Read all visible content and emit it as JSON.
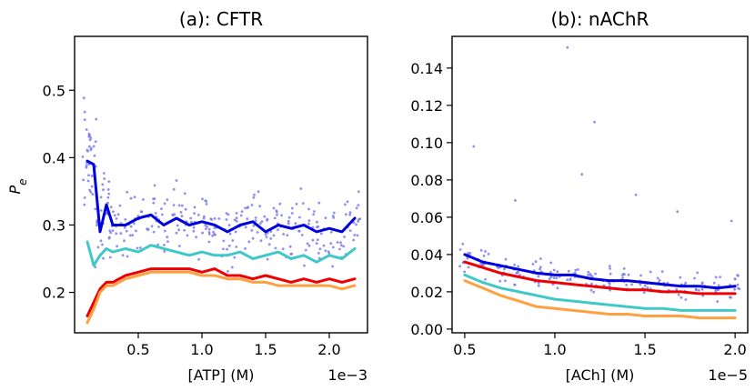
{
  "chart_data": [
    {
      "type": "line",
      "title": "(a): CFTR",
      "xlabel": "[ATP] (M)",
      "ylabel": "P_e",
      "x_offset_label": "1e−3",
      "xlim": [
        0.0,
        2.3
      ],
      "ylim": [
        0.14,
        0.58
      ],
      "xticks": [
        0.5,
        1.0,
        1.5,
        2.0
      ],
      "xtick_labels": [
        "0.5",
        "1.0",
        "1.5",
        "2.0"
      ],
      "yticks": [
        0.2,
        0.3,
        0.4,
        0.5
      ],
      "ytick_labels": [
        "0.2",
        "0.3",
        "0.4",
        "0.5"
      ],
      "grid": false,
      "x": [
        0.1,
        0.15,
        0.2,
        0.25,
        0.3,
        0.4,
        0.5,
        0.6,
        0.7,
        0.8,
        0.9,
        1.0,
        1.1,
        1.2,
        1.3,
        1.4,
        1.5,
        1.6,
        1.7,
        1.8,
        1.9,
        2.0,
        2.1,
        2.2
      ],
      "series": [
        {
          "color": "#0000dd",
          "values": [
            0.395,
            0.39,
            0.29,
            0.33,
            0.3,
            0.3,
            0.31,
            0.315,
            0.3,
            0.31,
            0.3,
            0.305,
            0.3,
            0.29,
            0.3,
            0.305,
            0.29,
            0.3,
            0.295,
            0.3,
            0.29,
            0.295,
            0.29,
            0.31
          ]
        },
        {
          "color": "#40c8c8",
          "values": [
            0.275,
            0.24,
            0.255,
            0.265,
            0.26,
            0.265,
            0.26,
            0.27,
            0.265,
            0.26,
            0.255,
            0.26,
            0.255,
            0.255,
            0.26,
            0.25,
            0.255,
            0.26,
            0.25,
            0.255,
            0.245,
            0.255,
            0.25,
            0.265
          ]
        },
        {
          "color": "#ee0000",
          "values": [
            0.165,
            0.185,
            0.205,
            0.215,
            0.215,
            0.225,
            0.23,
            0.235,
            0.235,
            0.235,
            0.235,
            0.23,
            0.235,
            0.225,
            0.225,
            0.22,
            0.225,
            0.22,
            0.215,
            0.22,
            0.215,
            0.22,
            0.215,
            0.22
          ]
        },
        {
          "color": "#ffa040",
          "values": [
            0.155,
            0.175,
            0.2,
            0.21,
            0.21,
            0.22,
            0.225,
            0.23,
            0.23,
            0.23,
            0.23,
            0.225,
            0.225,
            0.22,
            0.22,
            0.215,
            0.215,
            0.21,
            0.21,
            0.21,
            0.21,
            0.21,
            0.205,
            0.21
          ]
        }
      ],
      "scatter": {
        "color": "#7b7bee",
        "x": [
          0.1,
          0.15,
          0.2,
          0.25,
          0.3,
          0.4,
          0.5,
          0.6,
          0.7,
          0.8,
          0.9,
          1.0,
          1.1,
          1.2,
          1.3,
          1.4,
          1.5,
          1.6,
          1.7,
          1.8,
          1.9,
          2.0,
          2.1,
          2.2
        ],
        "center": [
          0.395,
          0.39,
          0.29,
          0.33,
          0.3,
          0.3,
          0.31,
          0.315,
          0.3,
          0.31,
          0.3,
          0.305,
          0.3,
          0.29,
          0.3,
          0.305,
          0.29,
          0.3,
          0.295,
          0.3,
          0.29,
          0.295,
          0.29,
          0.31
        ],
        "spread": [
          0.14,
          0.09,
          0.07,
          0.07,
          0.07,
          0.07,
          0.07,
          0.07,
          0.07,
          0.07,
          0.07,
          0.07,
          0.07,
          0.07,
          0.07,
          0.07,
          0.07,
          0.07,
          0.07,
          0.07,
          0.07,
          0.07,
          0.07,
          0.07
        ],
        "points_per_x": 14
      }
    },
    {
      "type": "line",
      "title": "(b): nAChR",
      "xlabel": "[ACh] (M)",
      "ylabel": "",
      "x_offset_label": "1e−5",
      "xlim": [
        0.43,
        2.07
      ],
      "ylim": [
        -0.002,
        0.157
      ],
      "xticks": [
        0.5,
        1.0,
        1.5,
        2.0
      ],
      "xtick_labels": [
        "0.5",
        "1.0",
        "1.5",
        "2.0"
      ],
      "yticks": [
        0.0,
        0.02,
        0.04,
        0.06,
        0.08,
        0.1,
        0.12,
        0.14
      ],
      "ytick_labels": [
        "0.00",
        "0.02",
        "0.04",
        "0.06",
        "0.08",
        "0.10",
        "0.12",
        "0.14"
      ],
      "grid": false,
      "x": [
        0.5,
        0.6,
        0.7,
        0.8,
        0.9,
        1.0,
        1.1,
        1.2,
        1.3,
        1.4,
        1.5,
        1.6,
        1.7,
        1.8,
        1.9,
        2.0
      ],
      "series": [
        {
          "color": "#0000dd",
          "values": [
            0.04,
            0.036,
            0.034,
            0.032,
            0.03,
            0.029,
            0.029,
            0.027,
            0.026,
            0.026,
            0.025,
            0.024,
            0.023,
            0.023,
            0.022,
            0.023
          ]
        },
        {
          "color": "#ee0000",
          "values": [
            0.036,
            0.033,
            0.03,
            0.028,
            0.026,
            0.025,
            0.024,
            0.023,
            0.022,
            0.021,
            0.021,
            0.02,
            0.02,
            0.019,
            0.019,
            0.019
          ]
        },
        {
          "color": "#40c8c8",
          "values": [
            0.029,
            0.025,
            0.022,
            0.02,
            0.018,
            0.016,
            0.015,
            0.014,
            0.013,
            0.012,
            0.011,
            0.011,
            0.01,
            0.01,
            0.01,
            0.01
          ]
        },
        {
          "color": "#ffa040",
          "values": [
            0.026,
            0.022,
            0.018,
            0.015,
            0.012,
            0.011,
            0.01,
            0.009,
            0.008,
            0.008,
            0.007,
            0.007,
            0.007,
            0.006,
            0.006,
            0.006
          ]
        }
      ],
      "scatter": {
        "color": "#7b7bee",
        "x": [
          0.5,
          0.6,
          0.7,
          0.8,
          0.9,
          1.0,
          1.1,
          1.2,
          1.3,
          1.4,
          1.5,
          1.6,
          1.7,
          1.8,
          1.9,
          2.0
        ],
        "center": [
          0.038,
          0.035,
          0.033,
          0.031,
          0.03,
          0.029,
          0.028,
          0.027,
          0.026,
          0.025,
          0.025,
          0.024,
          0.023,
          0.023,
          0.022,
          0.022
        ],
        "spread": [
          0.012,
          0.011,
          0.01,
          0.01,
          0.01,
          0.01,
          0.01,
          0.01,
          0.01,
          0.01,
          0.01,
          0.01,
          0.01,
          0.01,
          0.01,
          0.01
        ],
        "points_per_x": 12,
        "outliers": [
          {
            "x": 1.07,
            "y": 0.151
          },
          {
            "x": 1.22,
            "y": 0.111
          },
          {
            "x": 0.55,
            "y": 0.098
          },
          {
            "x": 1.15,
            "y": 0.083
          },
          {
            "x": 0.78,
            "y": 0.069
          },
          {
            "x": 1.45,
            "y": 0.072
          },
          {
            "x": 1.68,
            "y": 0.063
          },
          {
            "x": 1.98,
            "y": 0.058
          }
        ]
      }
    }
  ]
}
